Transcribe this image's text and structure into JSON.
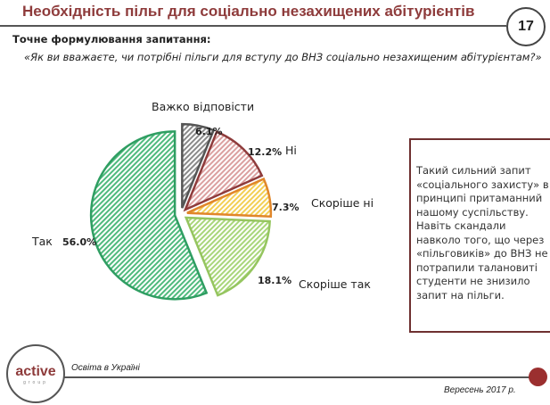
{
  "header": {
    "title": "Необхідність пільг для соціально незахищених абітурієнтів",
    "page_number": "17"
  },
  "question": {
    "label": "Точне формулювання запитання:",
    "text": "«Як ви вважаєте, чи потрібні пільги для вступу до ВНЗ соціально незахищеним абітурієнтам?»"
  },
  "chart_data": {
    "type": "pie",
    "title": "",
    "start": "top, clockwise",
    "slices": [
      {
        "name": "Важко відповісти",
        "value": 6.1,
        "label": "6.1%",
        "stroke": "#555555",
        "fill": "#8a8a8a"
      },
      {
        "name": "Ні",
        "value": 12.2,
        "label": "12.2%",
        "stroke": "#8e3b3b",
        "fill": "#dba0a0"
      },
      {
        "name": "Скоріше ні",
        "value": 7.3,
        "label": "7.3%",
        "stroke": "#e0862a",
        "fill": "#f3cf55"
      },
      {
        "name": "Скоріше так",
        "value": 18.1,
        "label": "18.1%",
        "stroke": "#95c55f",
        "fill": "#a9d67a"
      },
      {
        "name": "Так",
        "value": 56.0,
        "label": "56.0%",
        "stroke": "#2f9e62",
        "fill": "#4fba7d"
      }
    ]
  },
  "note": {
    "text": "Такий сильний запит «соціального захисту» в принципі притаманний нашому суспільству. Навіть скандали навколо того, що через «пільговиків» до ВНЗ не потрапили талановиті студенти не знизило запит на пільги."
  },
  "footer": {
    "source": "Освіта в Україні",
    "date": "Вересень 2017 р.",
    "logo_text": "active",
    "logo_sub": "group"
  }
}
